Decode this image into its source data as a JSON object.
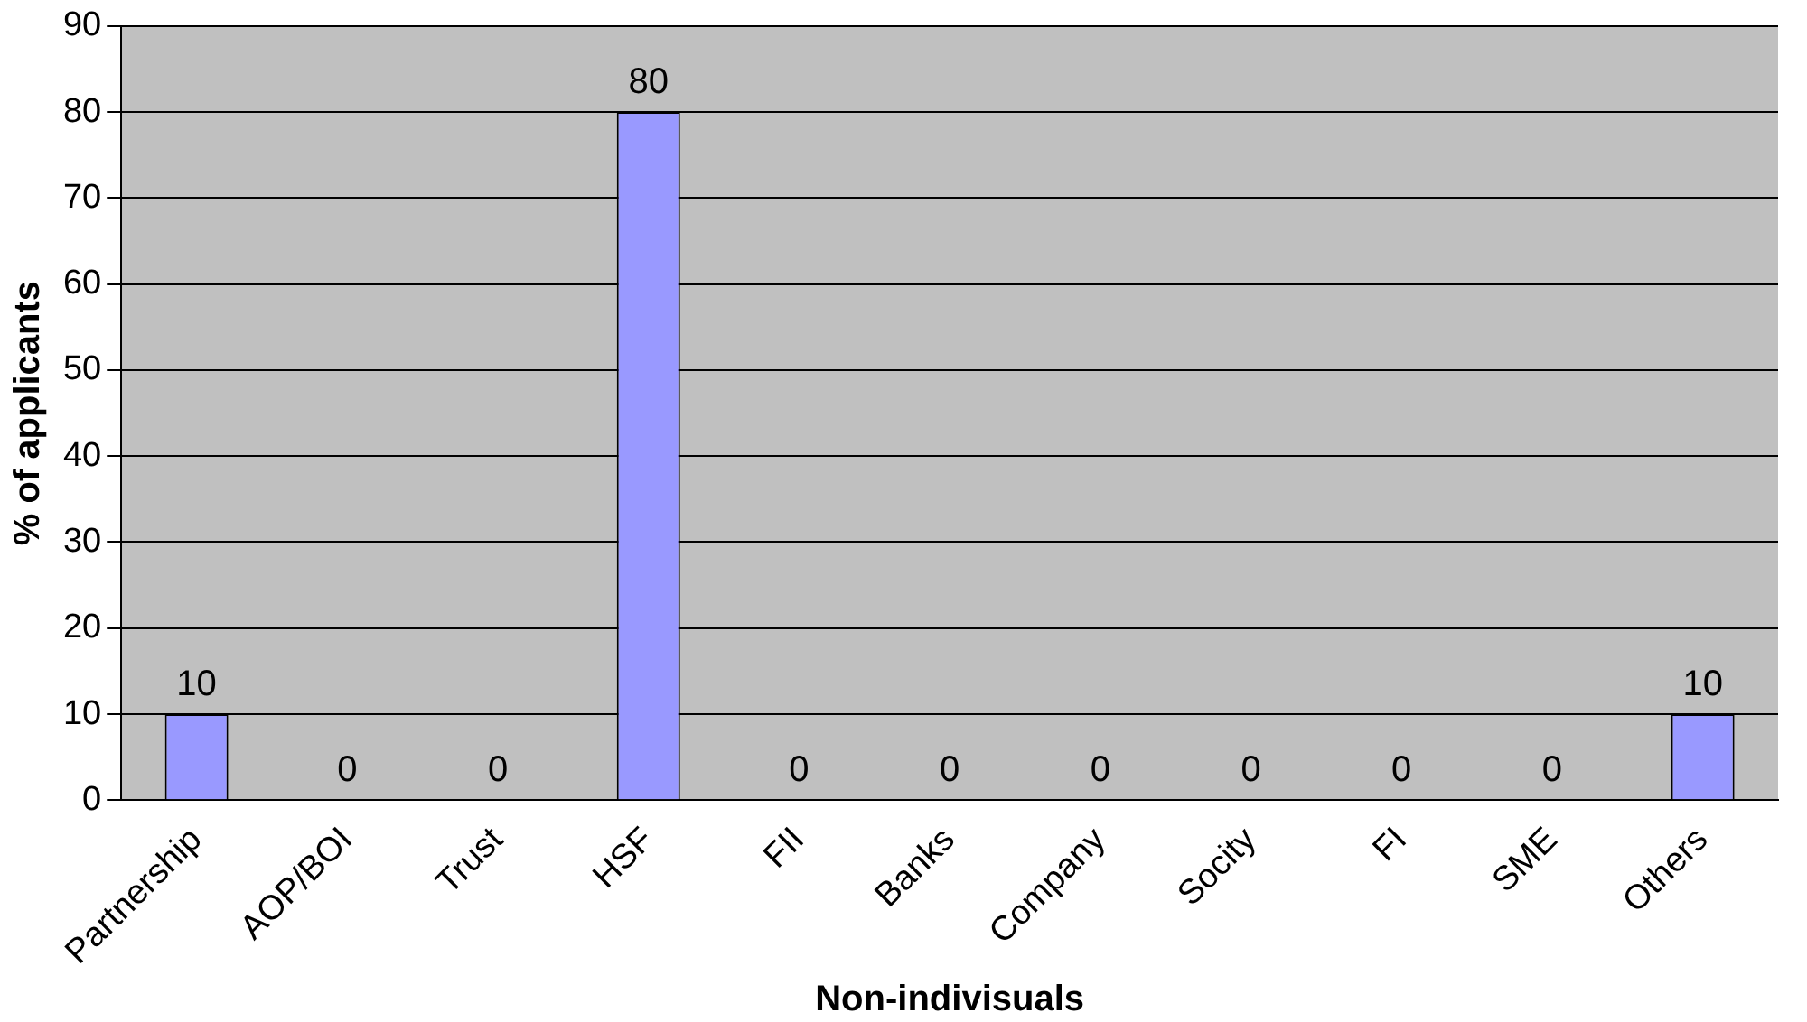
{
  "chart_data": {
    "type": "bar",
    "xlabel": "Non-indivisuals",
    "ylabel": "% of applicants",
    "categories": [
      "Partnership",
      "AOP/BOI",
      "Trust",
      "HSF",
      "FII",
      "Banks",
      "Company",
      "Socity",
      "FI",
      "SME",
      "Others"
    ],
    "values": [
      10,
      0,
      0,
      80,
      0,
      0,
      0,
      0,
      0,
      0,
      10
    ],
    "color": "#9999ff",
    "ylim": [
      0,
      90
    ],
    "yticks": [
      0,
      10,
      20,
      30,
      40,
      50,
      60,
      70,
      80,
      90
    ],
    "grid": "y",
    "data_labels": true,
    "legend": false
  }
}
